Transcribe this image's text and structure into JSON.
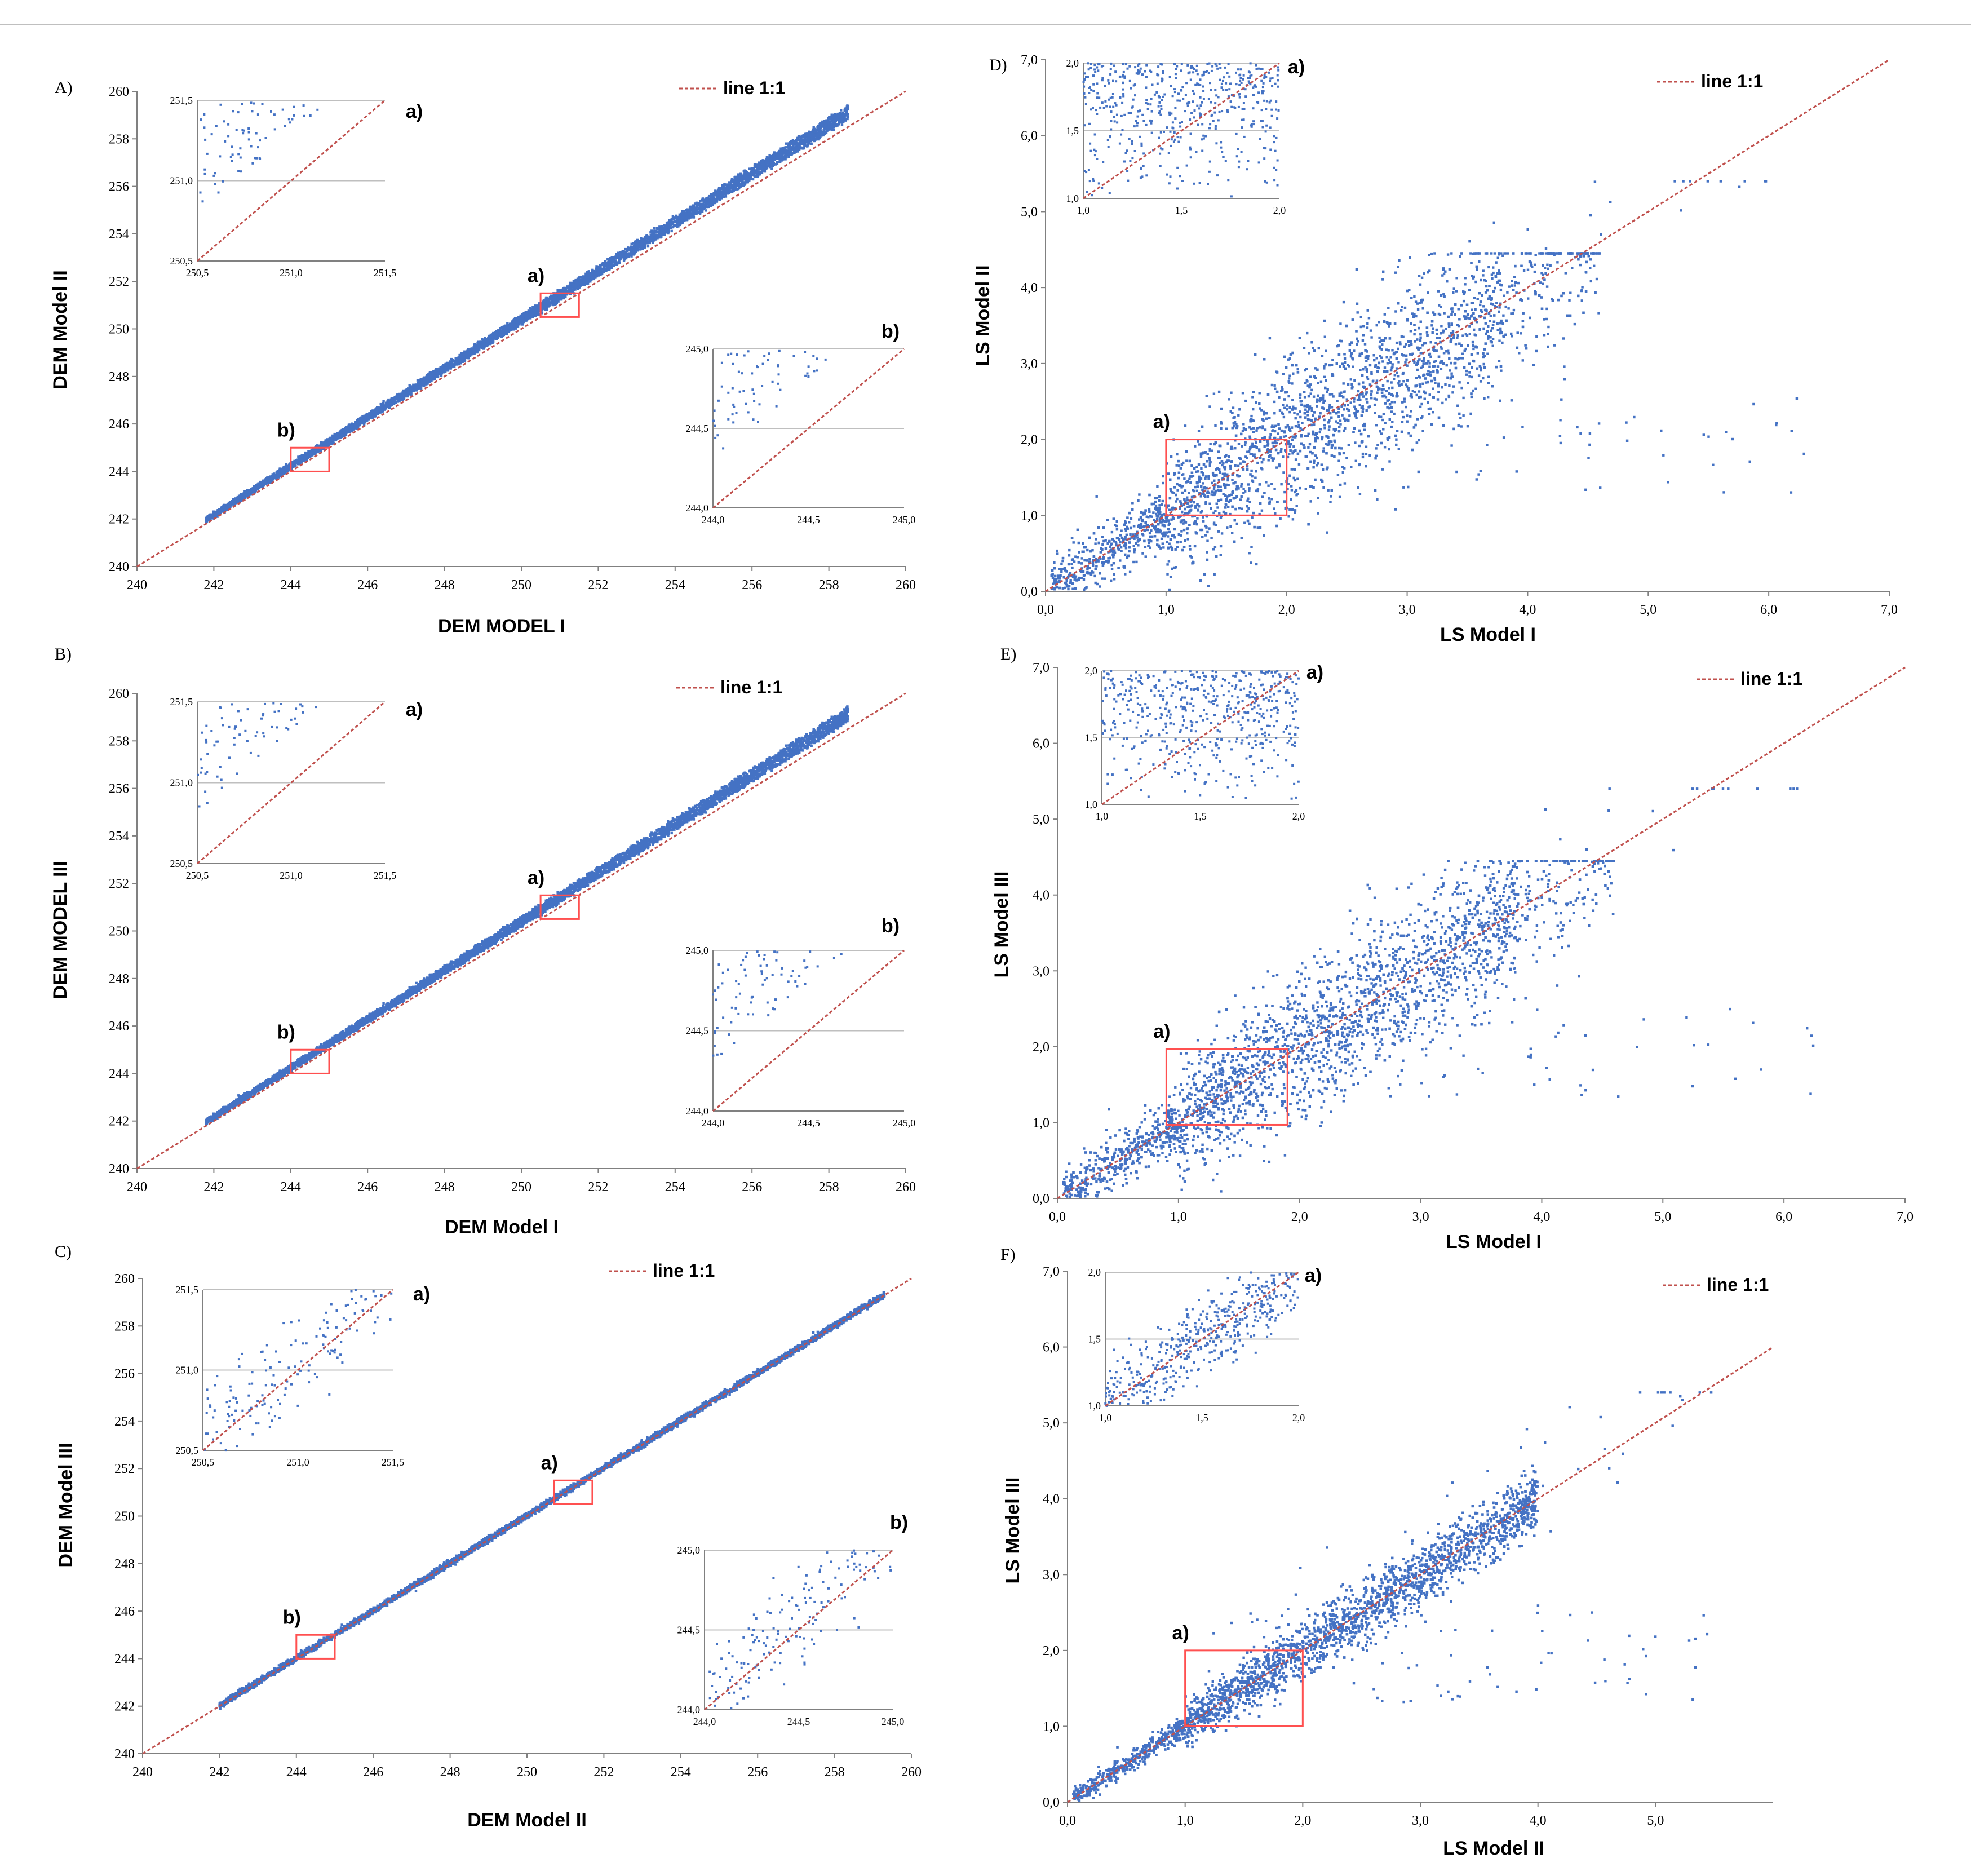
{
  "colors": {
    "points": "#4472c4",
    "line": "#c0504d",
    "box": "#ff5050",
    "grid": "#bfbfbf",
    "axis": "#808080",
    "text": "#000000"
  },
  "chart_data": [
    {
      "id": "A",
      "panel_label": "A)",
      "type": "scatter",
      "xlabel": "DEM MODEL I",
      "ylabel": "DEM Model II",
      "xlim": [
        240,
        260
      ],
      "ylim": [
        240,
        260
      ],
      "xticks": [
        "240",
        "242",
        "244",
        "246",
        "248",
        "250",
        "252",
        "254",
        "256",
        "258",
        "260"
      ],
      "yticks": [
        "240",
        "242",
        "244",
        "246",
        "248",
        "250",
        "252",
        "254",
        "256",
        "258",
        "260"
      ],
      "legend": "line 1:1",
      "series": [
        {
          "name": "points",
          "x_range": [
            241.8,
            258.5
          ],
          "pattern": "dense band",
          "offset_max": 0.9
        }
      ],
      "highlight_boxes": [
        {
          "label": "a)",
          "x": [
            250.5,
            251.5
          ],
          "y": [
            250.5,
            251.5
          ]
        },
        {
          "label": "b)",
          "x": [
            244.0,
            245.0
          ],
          "y": [
            244.0,
            245.0
          ]
        }
      ],
      "insets": [
        {
          "label": "a)",
          "position": "top-left",
          "xlim": [
            250.5,
            251.5
          ],
          "ylim": [
            250.5,
            251.5
          ],
          "xticks": [
            "250,5",
            "251,0",
            "251,5"
          ],
          "yticks": [
            "250,5",
            "251,0",
            "251,5"
          ]
        },
        {
          "label": "b)",
          "position": "right",
          "xlim": [
            244.0,
            245.0
          ],
          "ylim": [
            244.0,
            245.0
          ],
          "xticks": [
            "244,0",
            "244,5",
            "245,0"
          ],
          "yticks": [
            "244,0",
            "244,5",
            "245,0"
          ]
        }
      ]
    },
    {
      "id": "B",
      "panel_label": "B)",
      "type": "scatter",
      "xlabel": "DEM Model I",
      "ylabel": "DEM MODEL III",
      "xlim": [
        240,
        260
      ],
      "ylim": [
        240,
        260
      ],
      "xticks": [
        "240",
        "242",
        "244",
        "246",
        "248",
        "250",
        "252",
        "254",
        "256",
        "258",
        "260"
      ],
      "yticks": [
        "240",
        "242",
        "244",
        "246",
        "248",
        "250",
        "252",
        "254",
        "256",
        "258",
        "260"
      ],
      "legend": "line 1:1",
      "series": [
        {
          "name": "points",
          "x_range": [
            241.8,
            258.5
          ],
          "pattern": "dense band",
          "offset_max": 0.9
        }
      ],
      "highlight_boxes": [
        {
          "label": "a)",
          "x": [
            250.5,
            251.5
          ],
          "y": [
            250.5,
            251.5
          ]
        },
        {
          "label": "b)",
          "x": [
            244.0,
            245.0
          ],
          "y": [
            244.0,
            245.0
          ]
        }
      ],
      "insets": [
        {
          "label": "a)",
          "position": "top-left",
          "xlim": [
            250.5,
            251.5
          ],
          "ylim": [
            250.5,
            251.5
          ],
          "xticks": [
            "250,5",
            "251,0",
            "251,5"
          ],
          "yticks": [
            "250,5",
            "251,0",
            "251,5"
          ]
        },
        {
          "label": "b)",
          "position": "right",
          "xlim": [
            244.0,
            245.0
          ],
          "ylim": [
            244.0,
            245.0
          ],
          "xticks": [
            "244,0",
            "244,5",
            "245,0"
          ],
          "yticks": [
            "244,0",
            "244,5",
            "245,0"
          ]
        }
      ]
    },
    {
      "id": "C",
      "panel_label": "C)",
      "type": "scatter",
      "xlabel": "DEM Model II",
      "ylabel": "DEM Model III",
      "xlim": [
        240,
        260
      ],
      "ylim": [
        240,
        260
      ],
      "xticks": [
        "240",
        "242",
        "244",
        "246",
        "248",
        "250",
        "252",
        "254",
        "256",
        "258",
        "260"
      ],
      "yticks": [
        "240",
        "242",
        "244",
        "246",
        "248",
        "250",
        "252",
        "254",
        "256",
        "258",
        "260"
      ],
      "legend": "line 1:1",
      "series": [
        {
          "name": "points",
          "x_range": [
            242.0,
            259.3
          ],
          "pattern": "tight band along 1:1",
          "offset_max": 0.2
        }
      ],
      "highlight_boxes": [
        {
          "label": "a)",
          "x": [
            250.7,
            251.7
          ],
          "y": [
            250.5,
            251.5
          ]
        },
        {
          "label": "b)",
          "x": [
            244.0,
            245.0
          ],
          "y": [
            244.0,
            245.0
          ]
        }
      ],
      "insets": [
        {
          "label": "a)",
          "position": "top-left",
          "xlim": [
            250.5,
            251.5
          ],
          "ylim": [
            250.5,
            251.5
          ],
          "xticks": [
            "250,5",
            "251,0",
            "251,5"
          ],
          "yticks": [
            "250,5",
            "251,0",
            "251,5"
          ]
        },
        {
          "label": "b)",
          "position": "right",
          "xlim": [
            244.0,
            245.0
          ],
          "ylim": [
            244.0,
            245.0
          ],
          "xticks": [
            "244,0",
            "244,5",
            "245,0"
          ],
          "yticks": [
            "244,0",
            "244,5",
            "245,0"
          ]
        }
      ]
    },
    {
      "id": "D",
      "panel_label": "D)",
      "type": "scatter",
      "xlabel": "LS Model I",
      "ylabel": "LS Model II",
      "xlim": [
        0,
        7
      ],
      "ylim": [
        0,
        7
      ],
      "xticks": [
        "0,0",
        "1,0",
        "2,0",
        "3,0",
        "4,0",
        "5,0",
        "6,0",
        "7,0"
      ],
      "yticks": [
        "0,0",
        "1,0",
        "2,0",
        "3,0",
        "4,0",
        "5,0",
        "6,0",
        "7,0"
      ],
      "legend": "line 1:1",
      "series": [
        {
          "name": "points",
          "x_range": [
            0.05,
            4.6
          ],
          "pattern": "wide cloud along 1:1",
          "spread": 0.55,
          "outliers_x_max": 6.3
        }
      ],
      "highlight_boxes": [
        {
          "label": "a)",
          "x": [
            1.0,
            2.0
          ],
          "y": [
            1.0,
            2.0
          ]
        }
      ],
      "insets": [
        {
          "label": "a)",
          "position": "top-left",
          "xlim": [
            1.0,
            2.0
          ],
          "ylim": [
            1.0,
            2.0
          ],
          "xticks": [
            "1,0",
            "1,5",
            "2,0"
          ],
          "yticks": [
            "1,0",
            "1,5",
            "2,0"
          ]
        }
      ]
    },
    {
      "id": "E",
      "panel_label": "E)",
      "type": "scatter",
      "xlabel": "LS Model I",
      "ylabel": "LS Model III",
      "xlim": [
        0,
        7
      ],
      "ylim": [
        0,
        7
      ],
      "xticks": [
        "0,0",
        "1,0",
        "2,0",
        "3,0",
        "4,0",
        "5,0",
        "6,0",
        "7,0"
      ],
      "yticks": [
        "0,0",
        "1,0",
        "2,0",
        "3,0",
        "4,0",
        "5,0",
        "6,0",
        "7,0"
      ],
      "legend": "line 1:1",
      "series": [
        {
          "name": "points",
          "x_range": [
            0.05,
            4.6
          ],
          "pattern": "wide cloud along 1:1",
          "spread": 0.5,
          "outliers_x_max": 6.3
        }
      ],
      "highlight_boxes": [
        {
          "label": "a)",
          "x": [
            0.9,
            1.9
          ],
          "y": [
            0.97,
            1.97
          ]
        }
      ],
      "insets": [
        {
          "label": "a)",
          "position": "top-left",
          "xlim": [
            1.0,
            2.0
          ],
          "ylim": [
            1.0,
            2.0
          ],
          "xticks": [
            "1,0",
            "1,5",
            "2,0"
          ],
          "yticks": [
            "1,0",
            "1,5",
            "2,0"
          ]
        }
      ]
    },
    {
      "id": "F",
      "panel_label": "F)",
      "type": "scatter",
      "xlabel": "LS Model II",
      "ylabel": "LS Model III",
      "xlim": [
        0,
        6
      ],
      "ylim": [
        0,
        7
      ],
      "xticks": [
        "0,0",
        "1,0",
        "2,0",
        "3,0",
        "4,0",
        "5,0"
      ],
      "yticks": [
        "0,0",
        "1,0",
        "2,0",
        "3,0",
        "4,0",
        "5,0",
        "6,0",
        "7,0"
      ],
      "legend": "line 1:1",
      "series": [
        {
          "name": "points",
          "x_range": [
            0.2,
            4.0
          ],
          "pattern": "narrow band along 1:1",
          "spread": 0.2,
          "outliers_x_max": 5.5
        }
      ],
      "highlight_boxes": [
        {
          "label": "a)",
          "x": [
            1.0,
            2.0
          ],
          "y": [
            1.0,
            2.0
          ]
        }
      ],
      "insets": [
        {
          "label": "a)",
          "position": "top-left",
          "xlim": [
            1.0,
            2.0
          ],
          "ylim": [
            1.0,
            2.0
          ],
          "xticks": [
            "1,0",
            "1,5",
            "2,0"
          ],
          "yticks": [
            "1,0",
            "1,5",
            "2,0"
          ]
        }
      ]
    }
  ]
}
